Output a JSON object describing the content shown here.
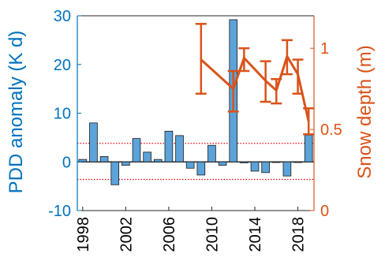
{
  "chart_data": {
    "type": "bar",
    "title": "",
    "xlabel": "",
    "ylabel_left": "PDD anomaly (K d)",
    "ylabel_right": "Snow depth (m)",
    "ylim_left": [
      -10,
      30
    ],
    "ylim_right": [
      0,
      1.2
    ],
    "xlim": [
      1997.5,
      2019.5
    ],
    "left_ticks": [
      "-10",
      "0",
      "10",
      "20",
      "30"
    ],
    "right_ticks": [
      "0",
      "0.5",
      "1"
    ],
    "x_ticks": [
      "1998",
      "2002",
      "2006",
      "2010",
      "2014",
      "2018"
    ],
    "threshold_lines": [
      3.8,
      -3.6
    ],
    "colors": {
      "bars": "#5BA3D9",
      "bar_edge": "#1a1a1a",
      "left_axis": "#0072BD",
      "right_axis": "#D95319",
      "threshold": "#E8000B"
    },
    "series": [
      {
        "name": "PDD anomaly",
        "axis": "left",
        "type": "bar",
        "x": [
          1998,
          1999,
          2000,
          2001,
          2002,
          2003,
          2004,
          2005,
          2006,
          2007,
          2008,
          2009,
          2010,
          2011,
          2012,
          2013,
          2014,
          2015,
          2016,
          2017,
          2018,
          2019
        ],
        "values": [
          0.5,
          8.0,
          1.1,
          -4.7,
          -0.7,
          4.8,
          2.0,
          0.5,
          6.3,
          5.4,
          -1.3,
          -2.7,
          3.4,
          -0.7,
          29.2,
          -0.2,
          -1.9,
          -2.2,
          0.0,
          -2.9,
          0.0,
          5.5
        ]
      },
      {
        "name": "Snow depth",
        "axis": "right",
        "type": "line",
        "x": [
          2009,
          2012,
          2013,
          2015,
          2016,
          2017,
          2018,
          2019
        ],
        "values": [
          0.93,
          0.75,
          0.94,
          0.8,
          0.74,
          0.95,
          0.84,
          0.55
        ],
        "err_low": [
          0.72,
          0.61,
          0.86,
          0.67,
          0.66,
          0.84,
          0.72,
          0.47
        ],
        "err_high": [
          1.15,
          0.86,
          1.0,
          0.92,
          0.81,
          1.05,
          0.93,
          0.63
        ]
      }
    ]
  }
}
